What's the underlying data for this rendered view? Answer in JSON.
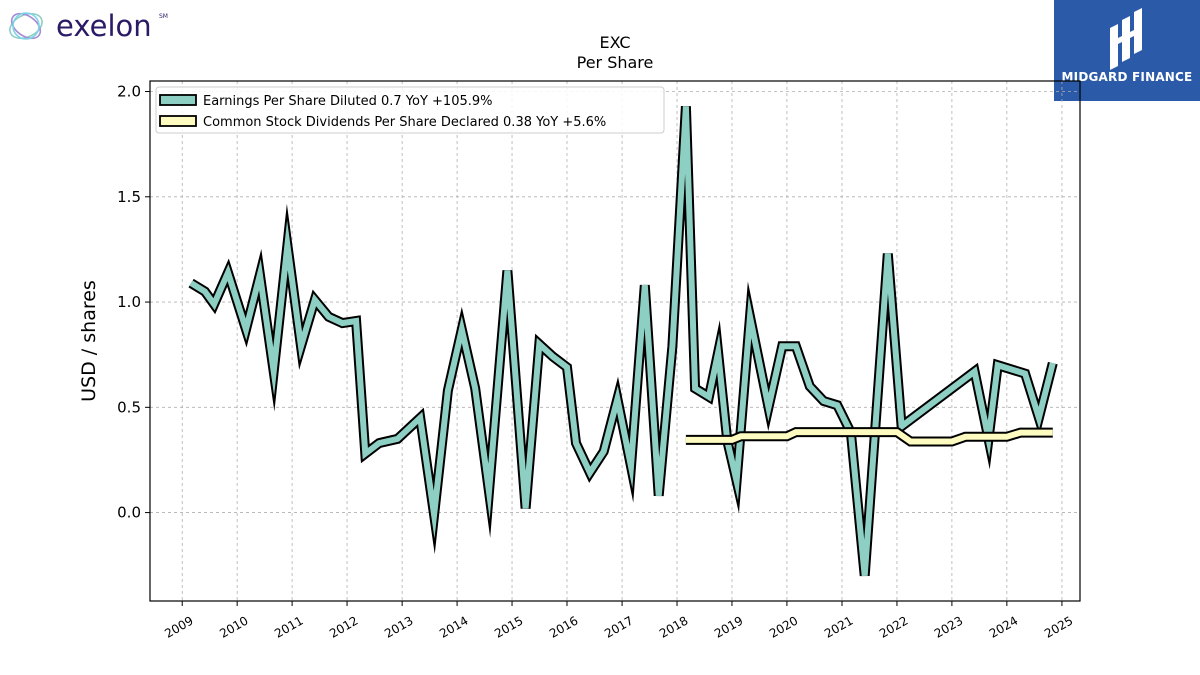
{
  "brand": {
    "company": "exelon",
    "company_mark": "SM",
    "publisher": "MIDGARD FINANCE"
  },
  "colors": {
    "eps_fill": "#8ecfc4",
    "dividend_fill": "#fdfbc0",
    "publisher_bg": "#2b5aa9",
    "logo_text": "#2b1a66"
  },
  "chart_data": {
    "type": "line",
    "title": "EXC\nPer  Share",
    "xlabel": "",
    "ylabel": "USD / shares",
    "xlim": [
      "2008-06-01",
      "2025-05-01"
    ],
    "ylim": [
      -0.42,
      2.05
    ],
    "y_ticks": [
      0.0,
      0.5,
      1.0,
      1.5,
      2.0
    ],
    "y_tick_labels": [
      "0.0",
      "0.5",
      "1.0",
      "1.5",
      "2.0"
    ],
    "x_tick_labels": [
      "2009",
      "2010",
      "2011",
      "2012",
      "2013",
      "2014",
      "2015",
      "2016",
      "2017",
      "2018",
      "2019",
      "2020",
      "2021",
      "2022",
      "2023",
      "2024",
      "2025"
    ],
    "grid": true,
    "legend_position": "top-left",
    "series": [
      {
        "name": "Earnings Per Share Diluted  0.7 YoY +105.9%",
        "color": "#8ecfc4",
        "points": [
          [
            "2009-03-01",
            1.09
          ],
          [
            "2009-06-01",
            1.05
          ],
          [
            "2009-08-01",
            0.99
          ],
          [
            "2009-11-01",
            1.14
          ],
          [
            "2010-03-01",
            0.87
          ],
          [
            "2010-06-01",
            1.13
          ],
          [
            "2010-09-01",
            0.67
          ],
          [
            "2010-12-01",
            1.27
          ],
          [
            "2011-03-01",
            0.79
          ],
          [
            "2011-06-01",
            1.01
          ],
          [
            "2011-09-01",
            0.93
          ],
          [
            "2011-12-01",
            0.9
          ],
          [
            "2012-03-01",
            0.91
          ],
          [
            "2012-05-01",
            0.28
          ],
          [
            "2012-08-01",
            0.33
          ],
          [
            "2012-12-01",
            0.35
          ],
          [
            "2013-05-01",
            0.45
          ],
          [
            "2013-08-01",
            -0.01
          ],
          [
            "2013-11-01",
            0.58
          ],
          [
            "2014-02-01",
            0.87
          ],
          [
            "2014-05-01",
            0.59
          ],
          [
            "2014-08-01",
            0.1
          ],
          [
            "2014-12-01",
            1.15
          ],
          [
            "2015-04-01",
            0.02
          ],
          [
            "2015-07-01",
            0.8
          ],
          [
            "2015-10-01",
            0.74
          ],
          [
            "2016-01-01",
            0.69
          ],
          [
            "2016-03-01",
            0.33
          ],
          [
            "2016-06-01",
            0.19
          ],
          [
            "2016-09-01",
            0.29
          ],
          [
            "2016-12-01",
            0.54
          ],
          [
            "2017-03-01",
            0.22
          ],
          [
            "2017-06-01",
            1.08
          ],
          [
            "2017-09-01",
            0.08
          ],
          [
            "2017-12-01",
            0.79
          ],
          [
            "2018-03-01",
            1.93
          ],
          [
            "2018-05-01",
            0.59
          ],
          [
            "2018-08-01",
            0.55
          ],
          [
            "2018-10-01",
            0.76
          ],
          [
            "2018-12-01",
            0.34
          ],
          [
            "2019-02-01",
            0.15
          ],
          [
            "2019-05-01",
            0.93
          ],
          [
            "2019-09-01",
            0.5
          ],
          [
            "2019-12-01",
            0.79
          ],
          [
            "2020-03-01",
            0.79
          ],
          [
            "2020-06-01",
            0.6
          ],
          [
            "2020-09-01",
            0.53
          ],
          [
            "2020-12-01",
            0.51
          ],
          [
            "2021-03-01",
            0.38
          ],
          [
            "2021-06-01",
            -0.3
          ],
          [
            "2021-11-01",
            1.23
          ],
          [
            "2022-02-01",
            0.41
          ],
          [
            "2023-06-01",
            0.67
          ],
          [
            "2023-09-01",
            0.35
          ],
          [
            "2023-11-01",
            0.7
          ],
          [
            "2024-05-01",
            0.66
          ],
          [
            "2024-08-01",
            0.45
          ],
          [
            "2024-11-01",
            0.71
          ]
        ]
      },
      {
        "name": "Common Stock Dividends Per Share Declared  0.38 YoY +5.6%",
        "color": "#fdfbc0",
        "points": [
          [
            "2018-03-01",
            0.345
          ],
          [
            "2019-01-01",
            0.345
          ],
          [
            "2019-03-01",
            0.3625
          ],
          [
            "2020-01-01",
            0.3625
          ],
          [
            "2020-03-01",
            0.3825
          ],
          [
            "2022-01-01",
            0.3825
          ],
          [
            "2022-04-01",
            0.3375
          ],
          [
            "2023-01-01",
            0.3375
          ],
          [
            "2023-04-01",
            0.36
          ],
          [
            "2024-01-01",
            0.36
          ],
          [
            "2024-04-01",
            0.38
          ],
          [
            "2024-11-01",
            0.38
          ]
        ]
      }
    ]
  }
}
